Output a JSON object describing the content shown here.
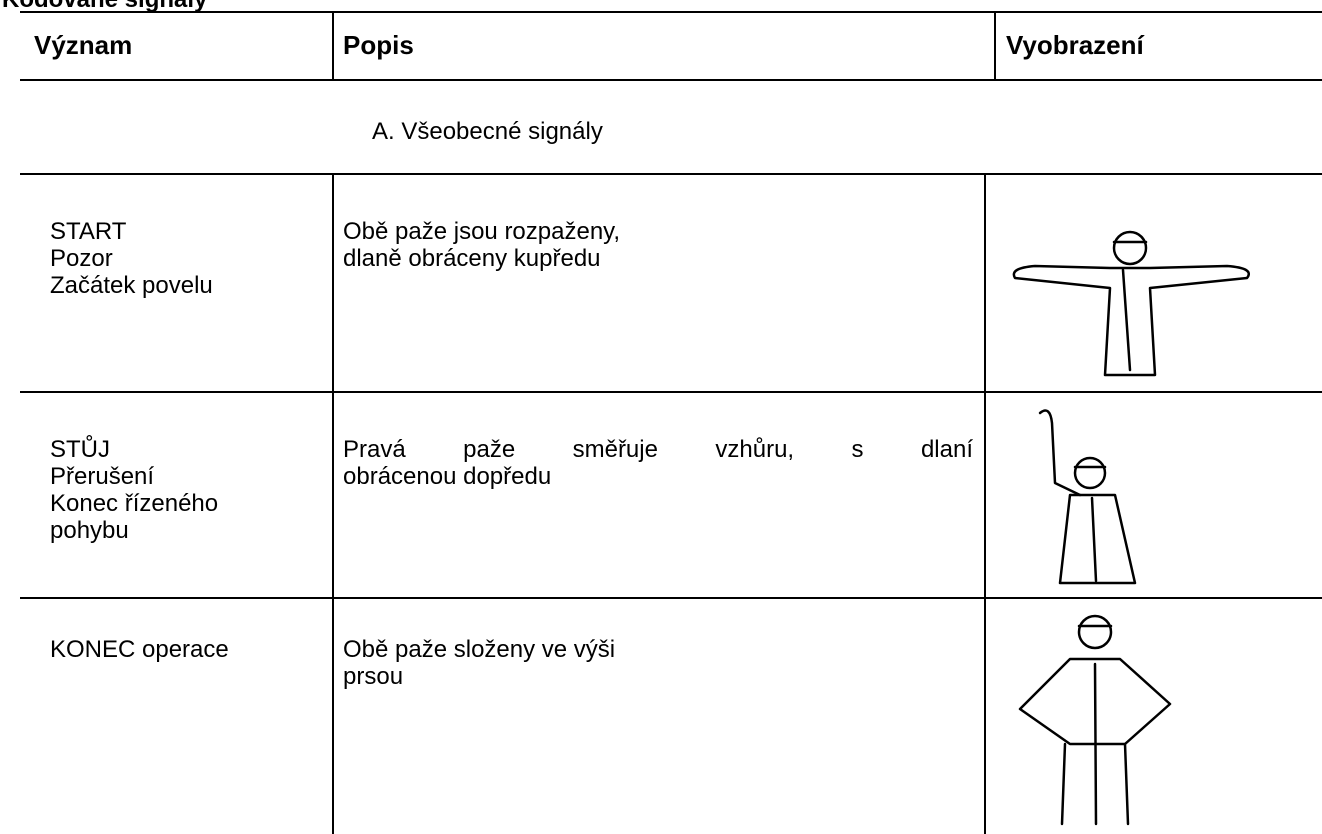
{
  "title": "Kódované signály",
  "table": {
    "headers": [
      "Význam",
      "Popis",
      "Vyobrazení"
    ],
    "section": "A. Všeobecné signály",
    "rows": [
      {
        "meaning": [
          "START",
          "Pozor",
          "Začátek povelu"
        ],
        "description": [
          "Obě paže jsou rozpaženy,",
          "dlaně obráceny kupředu"
        ]
      },
      {
        "meaning": [
          "STŮJ",
          "Přerušení",
          "Konec řízeného",
          "pohybu"
        ],
        "description": [
          "Pravá paže směřuje vzhůru, s dlaní",
          "obrácenou dopředu"
        ]
      },
      {
        "meaning": [
          "KONEC operace"
        ],
        "description": [
          "Obě paže složeny ve výši",
          "prsou"
        ]
      }
    ]
  }
}
